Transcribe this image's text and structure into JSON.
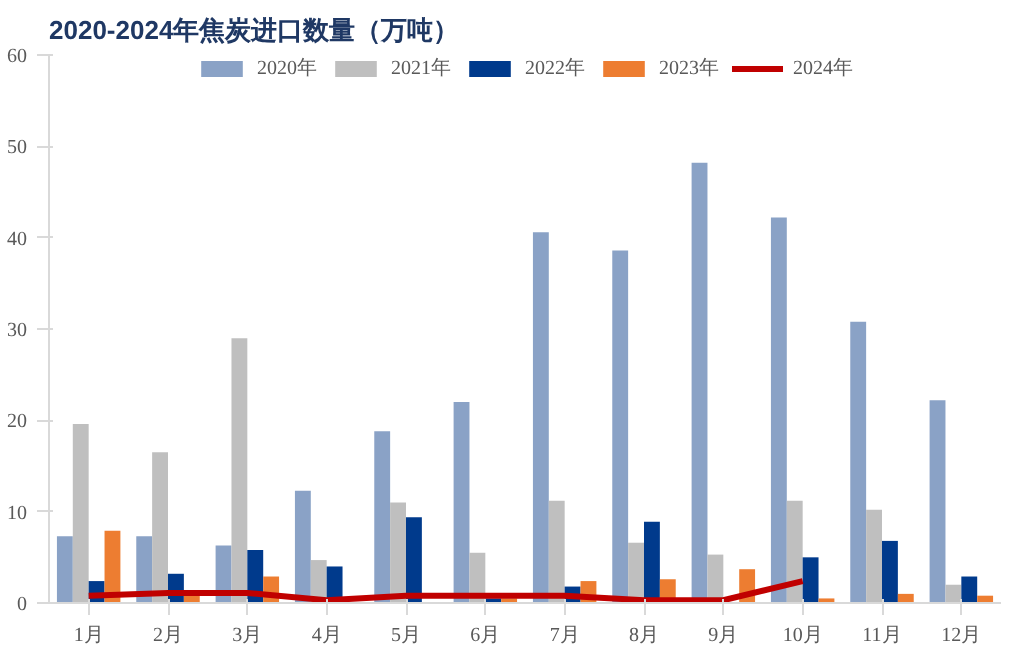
{
  "chart_data": {
    "type": "bar",
    "title": "2020-2024年焦炭进口数量（万吨）",
    "categories": [
      "1月",
      "2月",
      "3月",
      "4月",
      "5月",
      "6月",
      "7月",
      "8月",
      "9月",
      "10月",
      "11月",
      "12月"
    ],
    "series": [
      {
        "name": "2020年",
        "color": "#8aa2c6",
        "values": [
          7.3,
          7.3,
          6.3,
          12.3,
          18.8,
          22,
          40.6,
          38.6,
          48.2,
          42.2,
          30.8,
          22.2
        ]
      },
      {
        "name": "2021年",
        "color": "#bfbfbf",
        "values": [
          19.6,
          16.5,
          29,
          4.7,
          11,
          5.5,
          11.2,
          6.6,
          5.3,
          11.2,
          10.2,
          2
        ]
      },
      {
        "name": "2022年",
        "color": "#003a8c",
        "values": [
          2.4,
          3.2,
          5.8,
          4,
          9.4,
          0.5,
          1.8,
          8.9,
          null,
          5,
          6.8,
          2.9
        ]
      },
      {
        "name": "2023年",
        "color": "#ed7d31",
        "values": [
          7.9,
          1,
          2.9,
          null,
          null,
          0.5,
          2.4,
          2.6,
          3.7,
          0.5,
          1,
          0.8
        ]
      },
      {
        "name": "2024年",
        "color": "#c00000",
        "type": "line",
        "values": [
          0.8,
          1.1,
          1.1,
          0.3,
          0.8,
          0.8,
          0.8,
          0.3,
          0.3,
          2.4,
          null,
          null
        ]
      }
    ],
    "ylim": [
      0,
      60
    ],
    "yticks": [
      0,
      10,
      20,
      30,
      40,
      50,
      60
    ],
    "grid": false,
    "legend": "top"
  }
}
